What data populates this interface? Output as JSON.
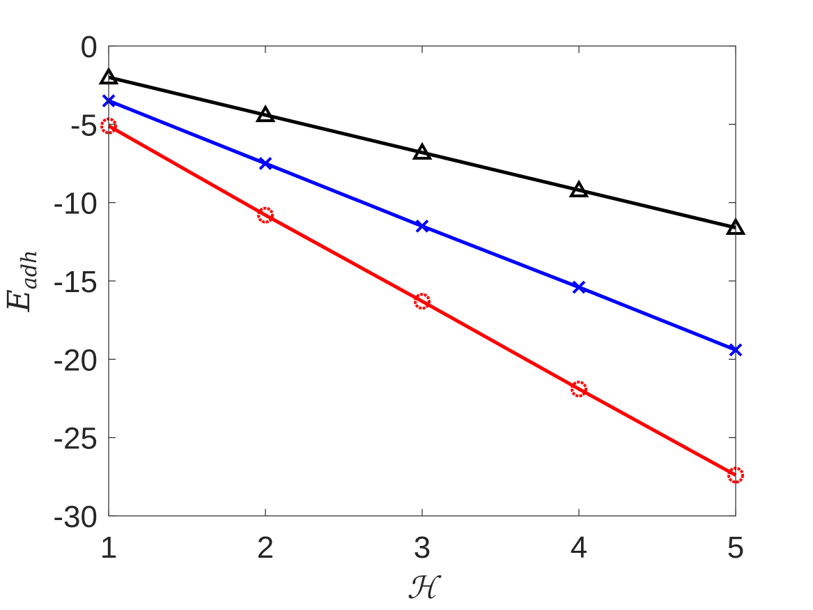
{
  "chart_data": {
    "type": "line",
    "xlabel": "ℋ",
    "ylabel": "E",
    "ylabel_subscript": "adh",
    "xlim": [
      1,
      5
    ],
    "ylim": [
      -30,
      0
    ],
    "xticks": [
      1,
      2,
      3,
      4,
      5
    ],
    "yticks": [
      0,
      -5,
      -10,
      -15,
      -20,
      -25,
      -30
    ],
    "x": [
      1,
      2,
      3,
      4,
      5
    ],
    "grid": false,
    "series": [
      {
        "color": "#000000",
        "marker": "triangle",
        "values": [
          -2.0,
          -4.4,
          -6.8,
          -9.2,
          -11.6
        ]
      },
      {
        "color": "#0000ff",
        "marker": "x",
        "values": [
          -3.5,
          -7.5,
          -11.5,
          -15.4,
          -19.4
        ]
      },
      {
        "color": "#ff0000",
        "marker": "circle",
        "values": [
          -5.1,
          -10.8,
          -16.3,
          -21.9,
          -27.4
        ]
      }
    ]
  }
}
